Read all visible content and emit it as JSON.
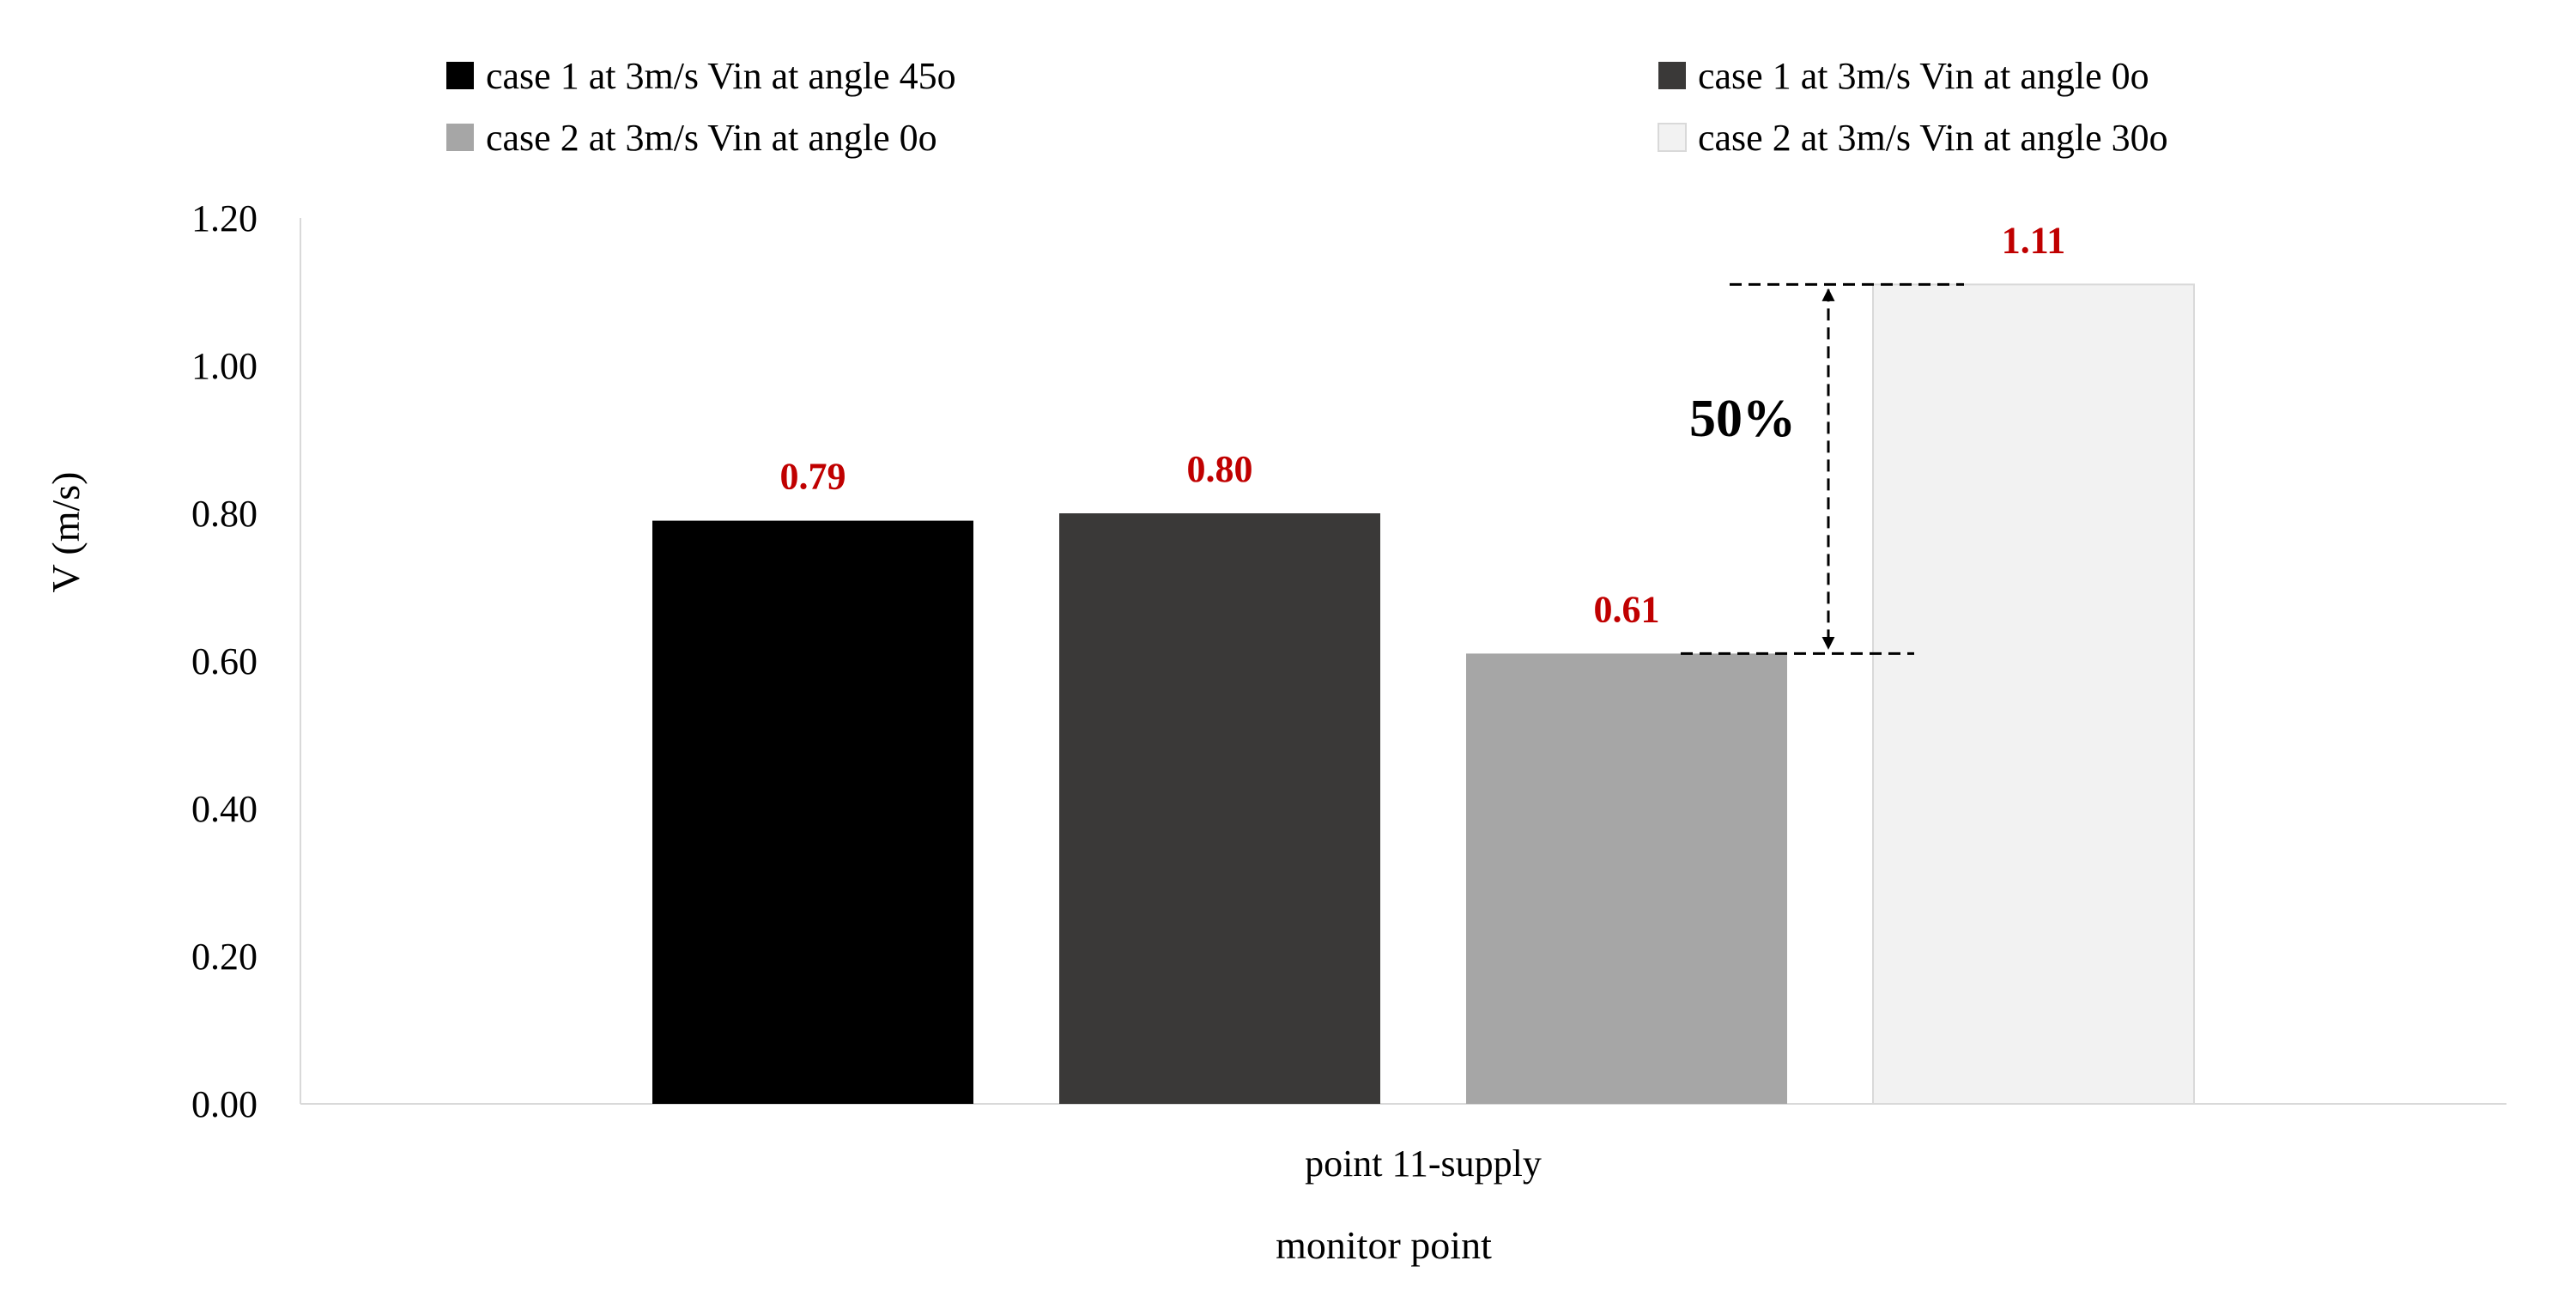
{
  "chart_data": {
    "type": "bar",
    "categories": [
      "point 11-supply"
    ],
    "series": [
      {
        "name": "case 1 at 3m/s Vin at angle 45o",
        "values": [
          0.79
        ],
        "color": "#000000",
        "label": "0.79"
      },
      {
        "name": "case 1 at 3m/s Vin at angle 0o",
        "values": [
          0.8
        ],
        "color": "#3a3938",
        "label": "0.80"
      },
      {
        "name": "case 2 at 3m/s Vin at angle 0o",
        "values": [
          0.61
        ],
        "color": "#a6a6a6",
        "label": "0.61"
      },
      {
        "name": "case 2 at 3m/s Vin at angle 30o",
        "values": [
          1.11
        ],
        "color": "#f2f2f2",
        "label": "1.11"
      }
    ],
    "xlabel": "monitor point",
    "ylabel": "V (m/s)",
    "ylim": [
      0,
      1.2
    ],
    "yticks": [
      "0.00",
      "0.20",
      "0.40",
      "0.60",
      "0.80",
      "1.00",
      "1.20"
    ],
    "grid": false,
    "legend_position": "top",
    "value_label_color": "#c00000",
    "annotation": {
      "text": "50%",
      "from_value": 0.61,
      "to_value": 1.11
    }
  }
}
